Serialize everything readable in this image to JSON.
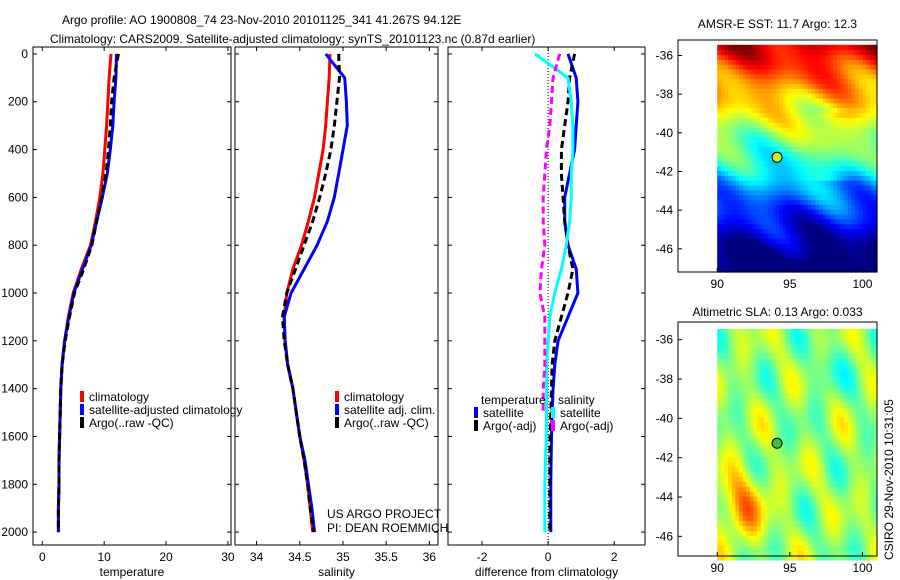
{
  "title_line1": "Argo profile: AO 1900808_74 23-Nov-2010 20101125_341 41.267S 94.12E",
  "title_line2": "Climatology: CARS2009. Satellite-adjusted climatology: synTS_20101123.nc (0.87d earlier)",
  "credit_line1": "US ARGO PROJECT",
  "credit_line2": "PI: DEAN ROEMMICH",
  "timestamp": "CSIRO 29-Nov-2010 10:31:05",
  "chart_data": [
    {
      "type": "line",
      "id": "temperature",
      "xlabel": "temperature",
      "xlim": [
        -1.5,
        30.5
      ],
      "xticks": [
        0,
        10,
        20,
        30
      ],
      "ylim": [
        2054,
        -29
      ],
      "yticks": [
        0,
        200,
        400,
        600,
        800,
        1000,
        1200,
        1400,
        1600,
        1800,
        2000
      ],
      "depth": [
        0,
        100,
        200,
        300,
        400,
        500,
        600,
        700,
        800,
        900,
        1000,
        1100,
        1200,
        1300,
        1400,
        1500,
        1600,
        1700,
        1800,
        1900,
        2000
      ],
      "series": [
        {
          "name": "climatology",
          "color": "#ff0000",
          "values": [
            11.1,
            10.8,
            10.6,
            10.4,
            10.1,
            9.8,
            9.3,
            8.6,
            7.8,
            6.3,
            5.0,
            4.2,
            3.6,
            3.2,
            3.0,
            2.9,
            2.8,
            2.7,
            2.7,
            2.6,
            2.6
          ]
        },
        {
          "name": "satellite-adjusted climatology",
          "color": "#0000ff",
          "values": [
            12.0,
            11.9,
            11.6,
            11.4,
            11.0,
            10.5,
            9.7,
            8.8,
            7.9,
            6.5,
            5.1,
            4.3,
            3.6,
            3.2,
            3.0,
            2.9,
            2.8,
            2.7,
            2.7,
            2.6,
            2.6
          ]
        },
        {
          "name": "Argo(..raw -QC)",
          "color": "#000000",
          "dashed": true,
          "values": [
            12.3,
            11.6,
            11.2,
            11.0,
            10.7,
            10.3,
            9.6,
            8.8,
            8.0,
            6.7,
            5.2,
            4.4,
            3.7,
            3.2,
            3.0,
            2.9,
            2.8,
            2.7,
            2.7,
            2.6,
            2.6
          ]
        }
      ]
    },
    {
      "type": "line",
      "id": "salinity",
      "xlabel": "salinity",
      "xlim": [
        33.75,
        36.1
      ],
      "xticks": [
        34,
        34.5,
        35,
        35.5,
        36
      ],
      "ylim": [
        2054,
        -29
      ],
      "depth": [
        0,
        100,
        200,
        300,
        400,
        500,
        600,
        700,
        800,
        900,
        1000,
        1100,
        1200,
        1300,
        1400,
        1500,
        1600,
        1700,
        1800,
        1900,
        2000
      ],
      "series": [
        {
          "name": "climatology",
          "color": "#ff0000",
          "values": [
            34.85,
            34.84,
            34.82,
            34.8,
            34.77,
            34.72,
            34.67,
            34.6,
            34.52,
            34.42,
            34.35,
            34.32,
            34.33,
            34.36,
            34.42,
            34.46,
            34.5,
            34.55,
            34.59,
            34.62,
            34.65
          ]
        },
        {
          "name": "satellite adj. clim.",
          "color": "#0000ff",
          "values": [
            34.8,
            35.02,
            35.04,
            35.05,
            35.0,
            34.95,
            34.9,
            34.82,
            34.7,
            34.55,
            34.4,
            34.32,
            34.33,
            34.36,
            34.42,
            34.46,
            34.5,
            34.56,
            34.6,
            34.64,
            34.67
          ]
        },
        {
          "name": "Argo(..raw -QC)",
          "color": "#000000",
          "dashed": true,
          "values": [
            34.95,
            34.96,
            34.93,
            34.9,
            34.86,
            34.8,
            34.73,
            34.65,
            34.55,
            34.45,
            34.35,
            34.3,
            34.32,
            34.36,
            34.42,
            34.46,
            34.5,
            34.55,
            34.59,
            34.62,
            34.66
          ]
        }
      ]
    },
    {
      "type": "line",
      "id": "difference",
      "xlabel": "difference from climatology",
      "xlim": [
        -3.03,
        2.93
      ],
      "xticks": [
        -2,
        0,
        2
      ],
      "ylim": [
        2054,
        -29
      ],
      "depth": [
        0,
        100,
        200,
        300,
        400,
        500,
        600,
        700,
        800,
        900,
        1000,
        1100,
        1200,
        1300,
        1400,
        1500,
        1600,
        1700,
        1800,
        1900,
        2000
      ],
      "legend_headers": [
        "temperature",
        "salinity"
      ],
      "series": [
        {
          "name": "satellite",
          "group": "temperature",
          "color": "#0000ff",
          "values": [
            0.6,
            0.85,
            0.9,
            0.85,
            0.8,
            0.65,
            0.5,
            0.5,
            0.6,
            0.85,
            0.9,
            0.6,
            0.3,
            0.2,
            0.15,
            0.12,
            0.1,
            0.09,
            0.08,
            0.08,
            0.08
          ]
        },
        {
          "name": "Argo(-adj)",
          "group": "temperature",
          "color": "#000000",
          "dashed": true,
          "values": [
            0.8,
            0.65,
            0.6,
            0.5,
            0.4,
            0.4,
            0.45,
            0.5,
            0.6,
            0.75,
            0.6,
            0.4,
            0.2,
            0.12,
            0.1,
            0.08,
            0.06,
            0.05,
            0.05,
            0.05,
            0.05
          ]
        },
        {
          "name": "satellite",
          "group": "salinity",
          "color": "#00ffff",
          "values": [
            -0.4,
            0.6,
            0.7,
            0.75,
            0.75,
            0.7,
            0.7,
            0.65,
            0.55,
            0.4,
            0.2,
            0.05,
            0.0,
            -0.05,
            -0.05,
            -0.05,
            -0.06,
            -0.08,
            -0.1,
            -0.1,
            -0.1
          ]
        },
        {
          "name": "Argo(-adj)",
          "group": "salinity",
          "color": "#ff00ff",
          "dashed": true,
          "values": [
            0.35,
            0.15,
            0.1,
            0.05,
            -0.05,
            -0.1,
            -0.15,
            -0.15,
            -0.1,
            -0.2,
            -0.25,
            -0.1,
            -0.1,
            -0.1,
            -0.15,
            -0.15,
            null,
            null,
            null,
            null,
            null
          ]
        }
      ]
    },
    {
      "type": "heatmap",
      "id": "sst-map",
      "title": "AMSR-E SST: 11.7 Argo: 12.3",
      "xlim": [
        87.3,
        101
      ],
      "ylim": [
        -47.2,
        -35.2
      ],
      "xticks": [
        90,
        95,
        100
      ],
      "yticks": [
        -36,
        -38,
        -40,
        -42,
        -44,
        -46
      ],
      "float_position": [
        94.12,
        -41.267
      ]
    },
    {
      "type": "heatmap",
      "id": "sla-map",
      "title": "Altimetric SLA: 0.13 Argo: 0.033",
      "xlim": [
        87.3,
        101
      ],
      "ylim": [
        -47,
        -35.1
      ],
      "xticks": [
        90,
        95,
        100
      ],
      "yticks": [
        -36,
        -38,
        -40,
        -42,
        -44,
        -46
      ],
      "float_position": [
        94.12,
        -41.267
      ]
    }
  ]
}
